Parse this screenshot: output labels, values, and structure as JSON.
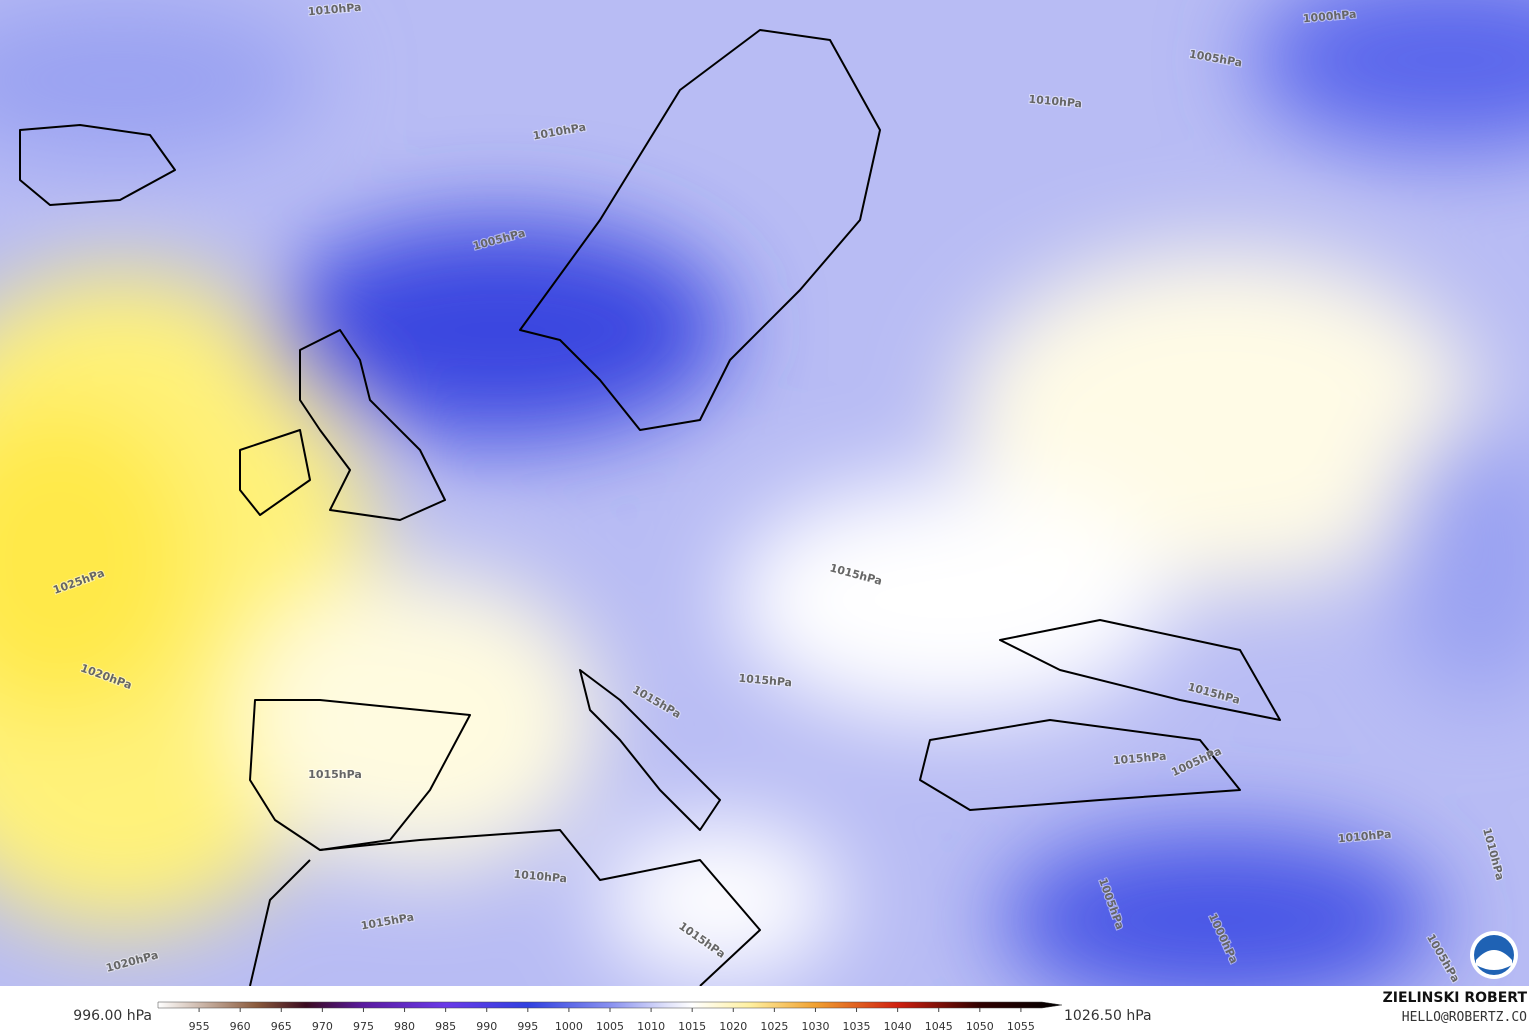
{
  "map": {
    "isobar_labels": [
      "1010hPa",
      "1010hPa",
      "1005hPa",
      "1000hPa",
      "1005hPa",
      "1010hPa",
      "1025hPa",
      "1020hPa",
      "1015hPa",
      "1015hPa",
      "1015hPa",
      "1015hPa",
      "1015hPa",
      "1015hPa",
      "1015hPa",
      "1010hPa",
      "1015hPa",
      "1020hPa",
      "1005hPa",
      "1010hPa",
      "1010hPa",
      "1005hPa",
      "1000hPa",
      "1005hPa"
    ]
  },
  "colorbar": {
    "min_label": "996.00 hPa",
    "max_label": "1026.50 hPa",
    "lim": [
      950,
      1060
    ],
    "ticks": [
      955,
      960,
      965,
      970,
      975,
      980,
      985,
      990,
      995,
      1000,
      1005,
      1010,
      1015,
      1020,
      1025,
      1030,
      1035,
      1040,
      1045,
      1050,
      1055
    ],
    "colors": [
      {
        "value": 950,
        "color": "#ffffff"
      },
      {
        "value": 962,
        "color": "#8a5a3c"
      },
      {
        "value": 968,
        "color": "#3a0a20"
      },
      {
        "value": 975,
        "color": "#5a1aa0"
      },
      {
        "value": 985,
        "color": "#6a3ae8"
      },
      {
        "value": 995,
        "color": "#3040e0"
      },
      {
        "value": 1005,
        "color": "#8890f0"
      },
      {
        "value": 1012,
        "color": "#e0e2fa"
      },
      {
        "value": 1015,
        "color": "#ffffff"
      },
      {
        "value": 1022,
        "color": "#fff0a0"
      },
      {
        "value": 1030,
        "color": "#f0a030"
      },
      {
        "value": 1040,
        "color": "#d02010"
      },
      {
        "value": 1050,
        "color": "#300000"
      },
      {
        "value": 1060,
        "color": "#000000"
      }
    ]
  },
  "credit": {
    "name": "ZIELINSKI ROBERT",
    "email": "HELLO@ROBERTZ.CO"
  }
}
